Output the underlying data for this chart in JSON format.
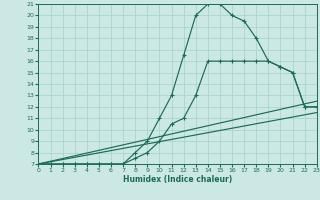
{
  "xlabel": "Humidex (Indice chaleur)",
  "bg_color": "#cce8e4",
  "grid_color": "#aad4d0",
  "line_color": "#1a6b5a",
  "xlim": [
    0,
    23
  ],
  "ylim": [
    7,
    21
  ],
  "xticks": [
    0,
    1,
    2,
    3,
    4,
    5,
    6,
    7,
    8,
    9,
    10,
    11,
    12,
    13,
    14,
    15,
    16,
    17,
    18,
    19,
    20,
    21,
    22,
    23
  ],
  "yticks": [
    7,
    8,
    9,
    10,
    11,
    12,
    13,
    14,
    15,
    16,
    17,
    18,
    19,
    20,
    21
  ],
  "curve1_x": [
    0,
    1,
    2,
    3,
    4,
    5,
    6,
    7,
    8,
    9,
    10,
    11,
    12,
    13,
    14,
    15,
    16,
    17,
    18,
    19,
    20,
    21,
    22,
    23
  ],
  "curve1_y": [
    7,
    7,
    7,
    7,
    7,
    7,
    7,
    7,
    8,
    9,
    11,
    13,
    16.5,
    20,
    21,
    21,
    20,
    19.5,
    18,
    16,
    15.5,
    15,
    12,
    12
  ],
  "curve2_x": [
    0,
    1,
    2,
    3,
    4,
    5,
    6,
    7,
    8,
    9,
    10,
    11,
    12,
    13,
    14,
    15,
    16,
    17,
    18,
    19,
    20,
    21,
    22,
    23
  ],
  "curve2_y": [
    7,
    7,
    7,
    7,
    7,
    7,
    7,
    7,
    7.5,
    8,
    9,
    10.5,
    11,
    13,
    16,
    16,
    16,
    16,
    16,
    16,
    15.5,
    15,
    12,
    12
  ],
  "line3_x": [
    0,
    23
  ],
  "line3_y": [
    7,
    12.5
  ],
  "line4_x": [
    0,
    23
  ],
  "line4_y": [
    7,
    11.5
  ],
  "diag_marker_x": [
    0,
    1,
    2,
    3,
    4,
    5,
    6,
    7,
    8,
    9,
    10,
    11,
    12,
    13,
    14,
    15,
    16,
    17,
    18,
    19,
    20,
    21,
    22,
    23
  ],
  "diag_marker_y": [
    7,
    7,
    7,
    7,
    7,
    7.1,
    7.2,
    7.4,
    7.7,
    8.0,
    8.4,
    8.7,
    9.1,
    9.5,
    9.9,
    10.2,
    10.6,
    11.0,
    11.3,
    11.7,
    12.0,
    12.4,
    12.7,
    13.0
  ]
}
